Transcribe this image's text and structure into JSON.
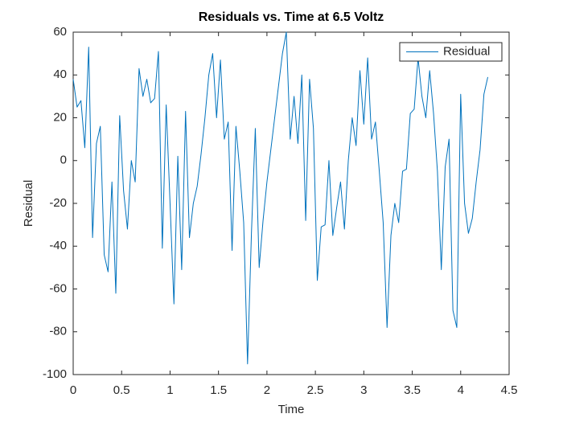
{
  "chart_data": {
    "type": "line",
    "title": "Residuals vs. Time at 6.5 Voltz",
    "x_label": "Time",
    "y_label": "Residual",
    "x": [
      0,
      0.04,
      0.08,
      0.12,
      0.16,
      0.2,
      0.24,
      0.28,
      0.32,
      0.36,
      0.4,
      0.44,
      0.48,
      0.52,
      0.56,
      0.6,
      0.64,
      0.68,
      0.72,
      0.76,
      0.8,
      0.84,
      0.88,
      0.92,
      0.96,
      1,
      1.04,
      1.08,
      1.12,
      1.16,
      1.2,
      1.24,
      1.28,
      1.32,
      1.36,
      1.4,
      1.44,
      1.48,
      1.52,
      1.56,
      1.6,
      1.64,
      1.68,
      1.72,
      1.76,
      1.8,
      1.84,
      1.88,
      1.92,
      1.96,
      2,
      2.04,
      2.08,
      2.12,
      2.16,
      2.2,
      2.24,
      2.28,
      2.32,
      2.36,
      2.4,
      2.44,
      2.48,
      2.52,
      2.56,
      2.6,
      2.64,
      2.68,
      2.72,
      2.76,
      2.8,
      2.84,
      2.88,
      2.92,
      2.96,
      3,
      3.04,
      3.08,
      3.12,
      3.16,
      3.2,
      3.24,
      3.28,
      3.32,
      3.36,
      3.4,
      3.44,
      3.48,
      3.52,
      3.56,
      3.6,
      3.64,
      3.68,
      3.72,
      3.76,
      3.8,
      3.84,
      3.88,
      3.92,
      3.96,
      4,
      4.04,
      4.08,
      4.12,
      4.16,
      4.2,
      4.24,
      4.28
    ],
    "series": [
      {
        "name": "Residual",
        "color": "#0072bd",
        "values": [
          38,
          25,
          28,
          6,
          53,
          -36,
          8,
          16,
          -44,
          -52,
          -10,
          -62,
          21,
          -14,
          -32,
          0,
          -10,
          43,
          30,
          38,
          27,
          29,
          51,
          -41,
          26,
          -20,
          -67,
          2,
          -51,
          23,
          -36,
          -20,
          -12,
          3,
          20,
          40,
          50,
          20,
          47,
          10,
          18,
          -42,
          16,
          -5,
          -29,
          -95,
          -34,
          15,
          -50,
          -28,
          -10,
          5,
          20,
          35,
          50,
          60,
          10,
          30,
          8,
          40,
          -28,
          38,
          15,
          -56,
          -31,
          -30,
          0,
          -35,
          -22,
          -10,
          -32,
          0,
          20,
          7,
          42,
          17,
          48,
          10,
          18,
          -5,
          -29,
          -78,
          -35,
          -20,
          -29,
          -5,
          -4,
          22,
          24,
          48,
          30,
          20,
          42,
          22,
          -5,
          -51,
          -3,
          10,
          -70,
          -78,
          31,
          -20,
          -34,
          -27,
          -10,
          5,
          31,
          39
        ]
      }
    ],
    "xlim": [
      0,
      4.5
    ],
    "xticks": [
      0,
      0.5,
      1,
      1.5,
      2,
      2.5,
      3,
      3.5,
      4,
      4.5
    ],
    "ylim": [
      -100,
      60
    ],
    "yticks": [
      -100,
      -80,
      -60,
      -40,
      -20,
      0,
      20,
      40,
      60
    ],
    "grid": false,
    "legend": "upper-right"
  }
}
